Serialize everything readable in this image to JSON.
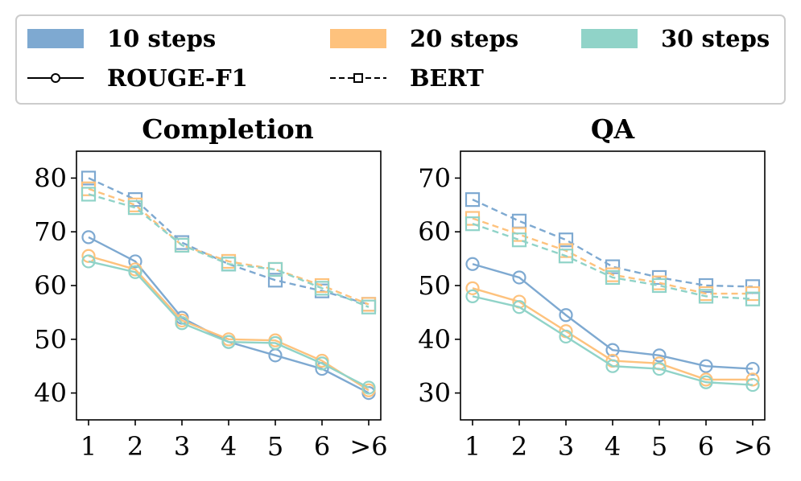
{
  "legend": {
    "steps": [
      {
        "label": "10 steps",
        "color": "#7EA9D1"
      },
      {
        "label": "20 steps",
        "color": "#FEC27D"
      },
      {
        "label": "30 steps",
        "color": "#90D3C8"
      }
    ],
    "metrics": [
      {
        "label": "ROUGE-F1",
        "style": "solid-circle"
      },
      {
        "label": "BERT",
        "style": "dashed-square"
      }
    ]
  },
  "chart_data": [
    {
      "type": "line",
      "title": "Completion",
      "categories": [
        "1",
        "2",
        "3",
        "4",
        "5",
        "6",
        ">6"
      ],
      "ylim": [
        35,
        85
      ],
      "yticks": [
        40,
        50,
        60,
        70,
        80
      ],
      "series": [
        {
          "name": "10 steps BERT",
          "metric": "BERT",
          "color": "#7EA9D1",
          "values": [
            80.0,
            76.0,
            68.0,
            64.0,
            61.0,
            59.0,
            56.5
          ]
        },
        {
          "name": "20 steps BERT",
          "metric": "BERT",
          "color": "#FEC27D",
          "values": [
            78.0,
            75.0,
            67.5,
            64.5,
            63.0,
            60.0,
            56.5
          ]
        },
        {
          "name": "30 steps BERT",
          "metric": "BERT",
          "color": "#90D3C8",
          "values": [
            77.0,
            74.5,
            67.5,
            64.0,
            63.0,
            59.5,
            56.0
          ]
        },
        {
          "name": "10 steps ROUGE-F1",
          "metric": "ROUGE-F1",
          "color": "#7EA9D1",
          "values": [
            69.0,
            64.5,
            54.0,
            49.5,
            47.0,
            44.5,
            40.0
          ]
        },
        {
          "name": "20 steps ROUGE-F1",
          "metric": "ROUGE-F1",
          "color": "#FEC27D",
          "values": [
            65.5,
            63.0,
            53.5,
            50.0,
            49.8,
            46.0,
            40.5
          ]
        },
        {
          "name": "30 steps ROUGE-F1",
          "metric": "ROUGE-F1",
          "color": "#90D3C8",
          "values": [
            64.5,
            62.5,
            53.0,
            49.5,
            49.3,
            45.5,
            41.0
          ]
        }
      ]
    },
    {
      "type": "line",
      "title": "QA",
      "categories": [
        "1",
        "2",
        "3",
        "4",
        "5",
        "6",
        ">6"
      ],
      "ylim": [
        25,
        75
      ],
      "yticks": [
        30,
        40,
        50,
        60,
        70
      ],
      "series": [
        {
          "name": "10 steps BERT",
          "metric": "BERT",
          "color": "#7EA9D1",
          "values": [
            66.0,
            62.0,
            58.5,
            53.5,
            51.5,
            50.0,
            49.8
          ]
        },
        {
          "name": "20 steps BERT",
          "metric": "BERT",
          "color": "#FEC27D",
          "values": [
            62.5,
            59.5,
            56.5,
            52.0,
            50.5,
            48.5,
            48.5
          ]
        },
        {
          "name": "30 steps BERT",
          "metric": "BERT",
          "color": "#90D3C8",
          "values": [
            61.5,
            58.5,
            55.5,
            51.5,
            50.0,
            48.0,
            47.5
          ]
        },
        {
          "name": "10 steps ROUGE-F1",
          "metric": "ROUGE-F1",
          "color": "#7EA9D1",
          "values": [
            54.0,
            51.5,
            44.5,
            38.0,
            37.0,
            35.0,
            34.5
          ]
        },
        {
          "name": "20 steps ROUGE-F1",
          "metric": "ROUGE-F1",
          "color": "#FEC27D",
          "values": [
            49.5,
            47.0,
            41.5,
            36.0,
            35.5,
            32.5,
            32.5
          ]
        },
        {
          "name": "30 steps ROUGE-F1",
          "metric": "ROUGE-F1",
          "color": "#90D3C8",
          "values": [
            48.0,
            46.0,
            40.5,
            35.0,
            34.5,
            32.0,
            31.5
          ]
        }
      ]
    }
  ]
}
